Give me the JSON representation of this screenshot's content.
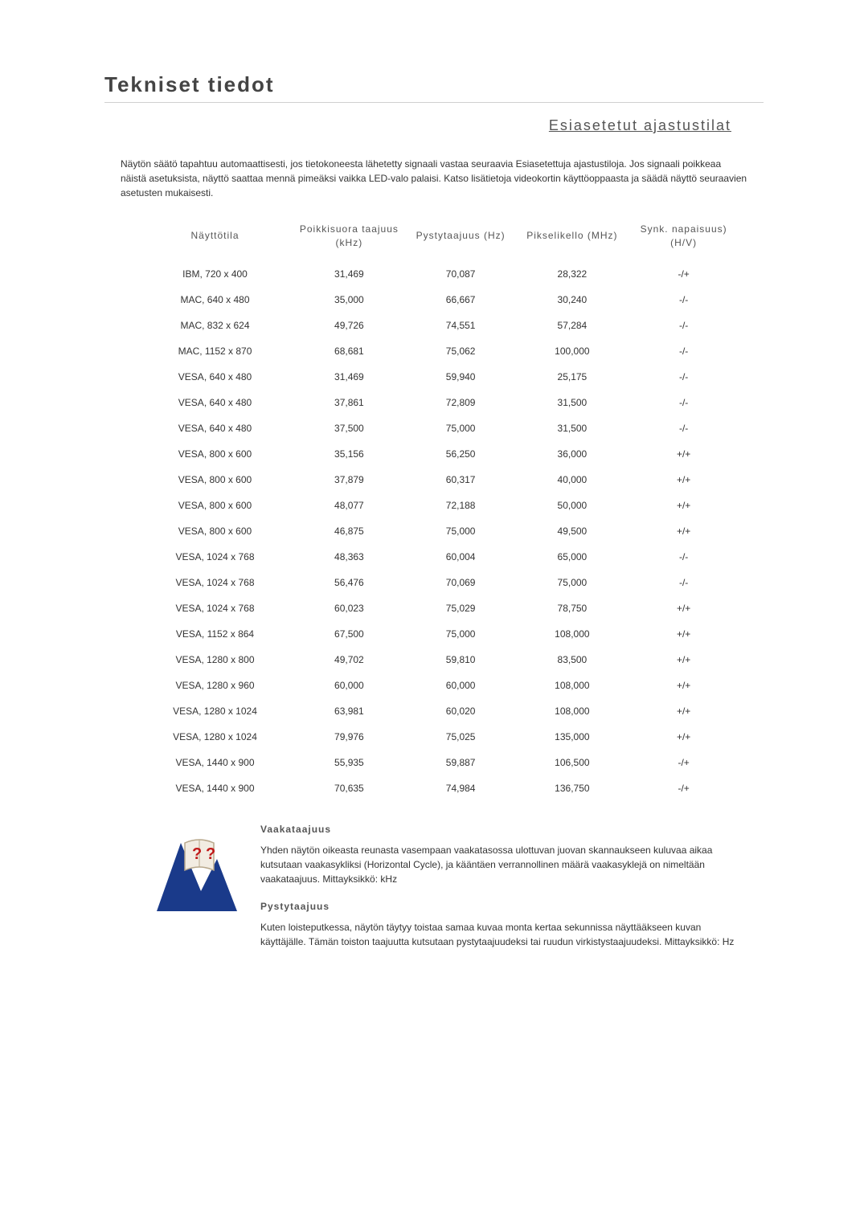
{
  "title": "Tekniset tiedot",
  "subtitle": "Esiasetetut ajastustilat",
  "intro": "Näytön säätö tapahtuu automaattisesti, jos tietokoneesta lähetetty signaali vastaa seuraavia Esiasetettuja ajastustiloja. Jos signaali poikkeaa näistä asetuksista, näyttö saattaa mennä pimeäksi vaikka LED-valo palaisi. Katso lisätietoja videokortin käyttöoppaasta ja säädä näyttö seuraavien asetusten mukaisesti.",
  "columns": {
    "mode": "Näyttötila",
    "hfreq": "Poikkisuora taajuus (kHz)",
    "vfreq": "Pystytaajuus (Hz)",
    "pixel": "Pikselikello (MHz)",
    "sync": "Synk. napaisuus) (H/V)"
  },
  "rows": [
    {
      "mode": "IBM, 720 x 400",
      "h": "31,469",
      "v": "70,087",
      "p": "28,322",
      "s": "-/+"
    },
    {
      "mode": "MAC, 640 x 480",
      "h": "35,000",
      "v": "66,667",
      "p": "30,240",
      "s": "-/-"
    },
    {
      "mode": "MAC, 832 x 624",
      "h": "49,726",
      "v": "74,551",
      "p": "57,284",
      "s": "-/-"
    },
    {
      "mode": "MAC, 1152 x 870",
      "h": "68,681",
      "v": "75,062",
      "p": "100,000",
      "s": "-/-"
    },
    {
      "mode": "VESA, 640 x 480",
      "h": "31,469",
      "v": "59,940",
      "p": "25,175",
      "s": "-/-"
    },
    {
      "mode": "VESA, 640 x 480",
      "h": "37,861",
      "v": "72,809",
      "p": "31,500",
      "s": "-/-"
    },
    {
      "mode": "VESA, 640 x 480",
      "h": "37,500",
      "v": "75,000",
      "p": "31,500",
      "s": "-/-"
    },
    {
      "mode": "VESA, 800 x 600",
      "h": "35,156",
      "v": "56,250",
      "p": "36,000",
      "s": "+/+"
    },
    {
      "mode": "VESA, 800 x 600",
      "h": "37,879",
      "v": "60,317",
      "p": "40,000",
      "s": "+/+"
    },
    {
      "mode": "VESA, 800 x 600",
      "h": "48,077",
      "v": "72,188",
      "p": "50,000",
      "s": "+/+"
    },
    {
      "mode": "VESA, 800 x 600",
      "h": "46,875",
      "v": "75,000",
      "p": "49,500",
      "s": "+/+"
    },
    {
      "mode": "VESA, 1024 x 768",
      "h": "48,363",
      "v": "60,004",
      "p": "65,000",
      "s": "-/-"
    },
    {
      "mode": "VESA, 1024 x 768",
      "h": "56,476",
      "v": "70,069",
      "p": "75,000",
      "s": "-/-"
    },
    {
      "mode": "VESA, 1024 x 768",
      "h": "60,023",
      "v": "75,029",
      "p": "78,750",
      "s": "+/+"
    },
    {
      "mode": "VESA, 1152 x 864",
      "h": "67,500",
      "v": "75,000",
      "p": "108,000",
      "s": "+/+"
    },
    {
      "mode": "VESA, 1280 x 800",
      "h": "49,702",
      "v": "59,810",
      "p": "83,500",
      "s": "+/+"
    },
    {
      "mode": "VESA, 1280 x 960",
      "h": "60,000",
      "v": "60,000",
      "p": "108,000",
      "s": "+/+"
    },
    {
      "mode": "VESA, 1280 x 1024",
      "h": "63,981",
      "v": "60,020",
      "p": "108,000",
      "s": "+/+"
    },
    {
      "mode": "VESA, 1280 x 1024",
      "h": "79,976",
      "v": "75,025",
      "p": "135,000",
      "s": "+/+"
    },
    {
      "mode": "VESA, 1440 x 900",
      "h": "55,935",
      "v": "59,887",
      "p": "106,500",
      "s": "-/+"
    },
    {
      "mode": "VESA, 1440 x 900",
      "h": "70,635",
      "v": "74,984",
      "p": "136,750",
      "s": "-/+"
    }
  ],
  "defs": {
    "h_title": "Vaakataajuus",
    "h_body": "Yhden näytön oikeasta reunasta vasempaan vaakatasossa ulottuvan juovan skannaukseen kuluvaa aikaa kutsutaan vaakasykliksi (Horizontal Cycle), ja kääntäen verrannollinen määrä vaakasyklejä on nimeltään vaakataajuus. Mittayksikkö: kHz",
    "v_title": "Pystytaajuus",
    "v_body": "Kuten loisteputkessa, näytön täytyy toistaa samaa kuvaa monta kertaa sekunnissa näyttääkseen kuvan käyttäjälle. Tämän toiston taajuutta kutsutaan pystytaajuudeksi tai ruudun virkistystaajuudeksi. Mittayksikkö: Hz"
  },
  "icon_colors": {
    "fill": "#1a3a8a",
    "accent": "#c01818",
    "page": "#f2ece2",
    "page_border": "#b8a88c"
  }
}
